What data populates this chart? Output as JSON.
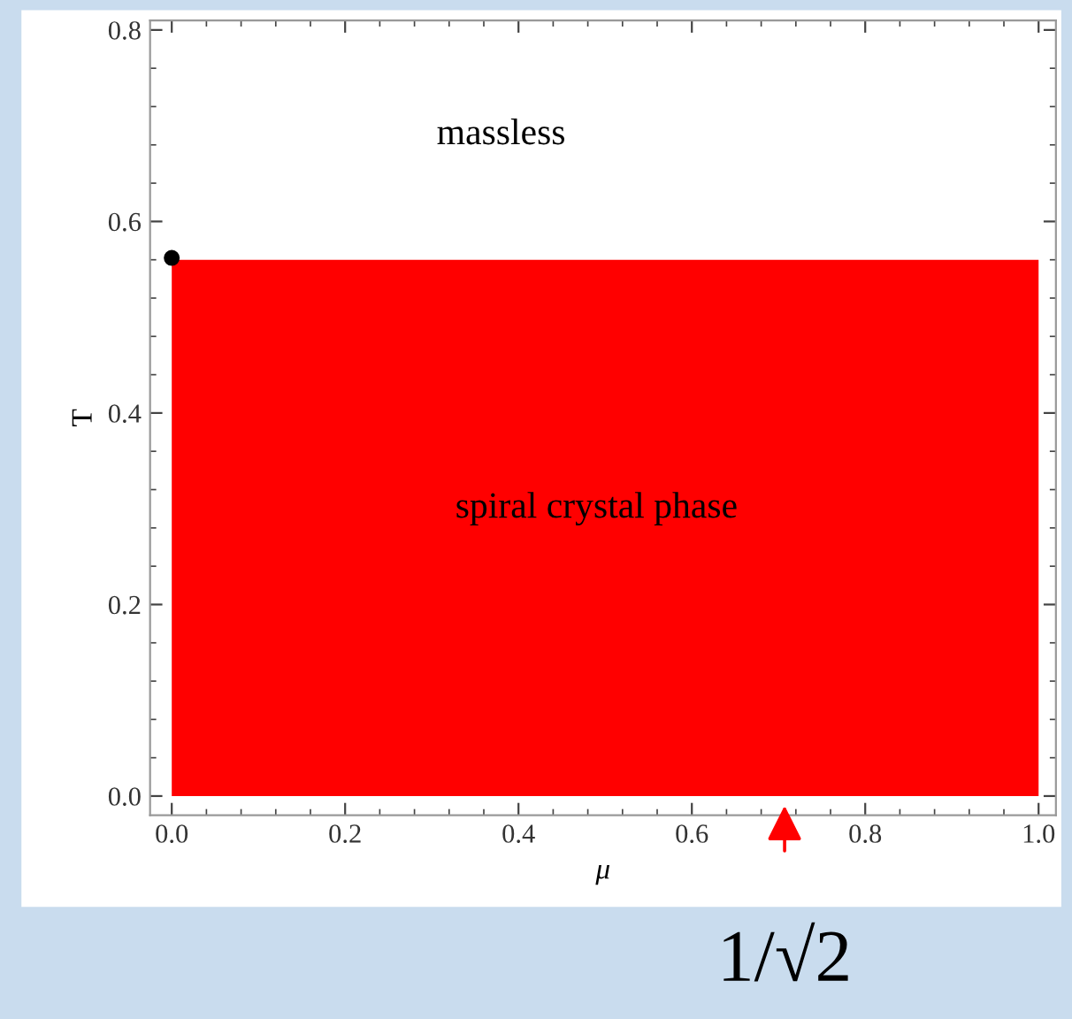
{
  "chart_data": {
    "type": "area",
    "xlabel": "μ",
    "ylabel": "T",
    "x": [
      0,
      1
    ],
    "series": [
      {
        "color": "#ff0000",
        "values": [
          0.56,
          0.56
        ]
      },
      {
        "type": "scatter",
        "color": "#000000",
        "x": [
          0
        ],
        "values": [
          0.562
        ],
        "marker": "circle"
      }
    ],
    "xlim": [
      -0.025,
      1.02
    ],
    "ylim": [
      -0.02,
      0.81
    ],
    "xticks": [
      {
        "value": 0,
        "label": "0.0"
      },
      {
        "value": 0.2,
        "label": "0.2"
      },
      {
        "value": 0.4,
        "label": "0.4"
      },
      {
        "value": 0.6,
        "label": "0.6"
      },
      {
        "value": 0.8,
        "label": "0.8"
      },
      {
        "value": 1,
        "label": "1.0"
      }
    ],
    "yticks": [
      {
        "value": 0,
        "label": "0.0"
      },
      {
        "value": 0.2,
        "label": "0.2"
      },
      {
        "value": 0.4,
        "label": "0.4"
      },
      {
        "value": 0.6,
        "label": "0.6"
      },
      {
        "value": 0.8,
        "label": "0.8"
      }
    ],
    "grid": false,
    "annotations": [
      "massless",
      "spiral crystal phase",
      "1/√2"
    ]
  }
}
